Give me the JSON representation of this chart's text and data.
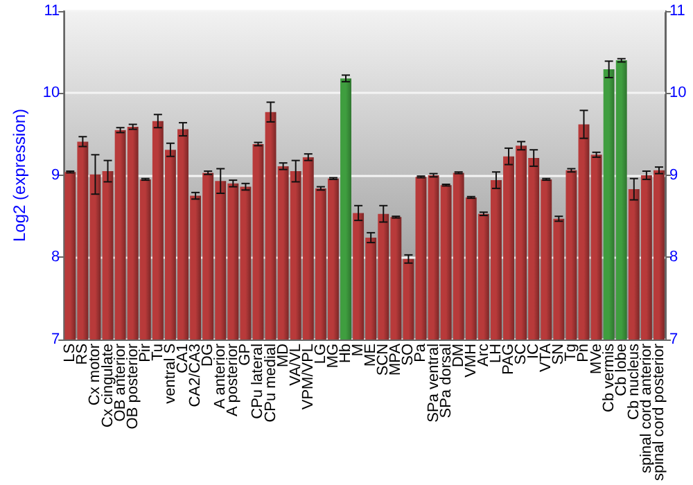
{
  "chart_data": {
    "type": "bar",
    "ylabel": "Log2 (expression)",
    "categories": [
      "LS",
      "RS",
      "Cx motor",
      "Cx cingulate",
      "OB anterior",
      "OB posterior",
      "Pir",
      "Tu",
      "ventral S",
      "CA1",
      "CA2/CA3",
      "DG",
      "A anterior",
      "A posterior",
      "GP",
      "CPu lateral",
      "CPu medial",
      "MD",
      "VA/VL",
      "VPM/VPL",
      "LG",
      "MG",
      "Hb",
      "M",
      "ME",
      "SCN",
      "MPA",
      "SO",
      "Pa",
      "SPa ventral",
      "SPa dorsal",
      "DM",
      "VMH",
      "Arc",
      "LH",
      "PAG",
      "SC",
      "IC",
      "VTA",
      "SN",
      "Tg",
      "Pn",
      "MVe",
      "Cb vermis",
      "Cb lobe",
      "Cb nucleus",
      "spinal cord anterior",
      "spinal cord posterior"
    ],
    "values": [
      9.04,
      9.41,
      9.01,
      9.05,
      9.55,
      9.59,
      8.95,
      9.66,
      9.31,
      9.56,
      8.75,
      9.03,
      8.93,
      8.9,
      8.86,
      9.38,
      9.77,
      9.11,
      9.05,
      9.22,
      8.84,
      8.96,
      10.18,
      8.54,
      8.24,
      8.53,
      8.49,
      7.98,
      8.98,
      9.0,
      8.88,
      9.03,
      8.73,
      8.53,
      8.94,
      9.23,
      9.36,
      9.21,
      8.95,
      8.47,
      9.06,
      9.62,
      9.25,
      10.29,
      10.4,
      8.83,
      9.0,
      9.06
    ],
    "errors": [
      0.01,
      0.06,
      0.24,
      0.13,
      0.03,
      0.03,
      0.01,
      0.08,
      0.08,
      0.08,
      0.04,
      0.02,
      0.15,
      0.04,
      0.04,
      0.02,
      0.12,
      0.04,
      0.13,
      0.04,
      0.02,
      0.01,
      0.04,
      0.09,
      0.06,
      0.1,
      0.01,
      0.05,
      0.01,
      0.02,
      0.01,
      0.01,
      0.01,
      0.02,
      0.1,
      0.1,
      0.05,
      0.1,
      0.01,
      0.03,
      0.02,
      0.17,
      0.03,
      0.1,
      0.02,
      0.13,
      0.05,
      0.04
    ],
    "colors": [
      "#b83a3a",
      "#b83a3a",
      "#b83a3a",
      "#b83a3a",
      "#b83a3a",
      "#b83a3a",
      "#b83a3a",
      "#b83a3a",
      "#b83a3a",
      "#b83a3a",
      "#b83a3a",
      "#b83a3a",
      "#b83a3a",
      "#b83a3a",
      "#b83a3a",
      "#b83a3a",
      "#b83a3a",
      "#b83a3a",
      "#b83a3a",
      "#b83a3a",
      "#b83a3a",
      "#b83a3a",
      "#3f9e3f",
      "#b83a3a",
      "#b83a3a",
      "#b83a3a",
      "#b83a3a",
      "#b83a3a",
      "#b83a3a",
      "#b83a3a",
      "#b83a3a",
      "#b83a3a",
      "#b83a3a",
      "#b83a3a",
      "#b83a3a",
      "#b83a3a",
      "#b83a3a",
      "#b83a3a",
      "#b83a3a",
      "#b83a3a",
      "#b83a3a",
      "#b83a3a",
      "#b83a3a",
      "#3f9e3f",
      "#3f9e3f",
      "#b83a3a",
      "#b83a3a",
      "#b83a3a"
    ],
    "ylim": [
      7,
      11
    ],
    "yticks": [
      7,
      8,
      9,
      10,
      11
    ],
    "y2lim": [
      7,
      11
    ],
    "y2ticks": [
      7,
      8,
      9,
      10,
      11
    ],
    "grid": "y"
  }
}
